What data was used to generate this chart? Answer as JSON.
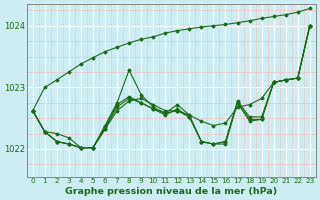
{
  "xlabel": "Graphe pression niveau de la mer (hPa)",
  "ylim": [
    1021.55,
    1024.35
  ],
  "xlim": [
    -0.5,
    23.5
  ],
  "yticks": [
    1022,
    1023,
    1024
  ],
  "xticks": [
    0,
    1,
    2,
    3,
    4,
    5,
    6,
    7,
    8,
    9,
    10,
    11,
    12,
    13,
    14,
    15,
    16,
    17,
    18,
    19,
    20,
    21,
    22,
    23
  ],
  "bg_color": "#cceef2",
  "grid_major_color": "#ffffff",
  "grid_minor_h_color": "#f0c0c0",
  "grid_minor_v_color": "#f0c0c0",
  "line_color": "#1a6b1a",
  "lines": [
    {
      "y": [
        1022.62,
        1022.28,
        1022.12,
        1022.08,
        1022.02,
        1022.02,
        1022.32,
        1022.62,
        1022.78,
        1022.82,
        1022.72,
        1022.62,
        1022.62,
        1022.55,
        1022.45,
        1022.38,
        1022.42,
        1022.68,
        1022.72,
        1022.82,
        1023.08,
        1023.12,
        1023.15,
        1024.0
      ]
    },
    {
      "y": [
        1022.62,
        1022.28,
        1022.12,
        1022.08,
        1022.02,
        1022.02,
        1022.32,
        1022.68,
        1022.82,
        1022.75,
        1022.65,
        1022.58,
        1022.62,
        1022.52,
        1022.12,
        1022.08,
        1022.08,
        1022.75,
        1022.45,
        1022.48,
        1023.08,
        1023.12,
        1023.15,
        1024.0
      ]
    },
    {
      "y": [
        1022.62,
        1022.28,
        1022.12,
        1022.08,
        1022.02,
        1022.02,
        1022.35,
        1022.72,
        1022.85,
        1022.75,
        1022.65,
        1022.55,
        1022.65,
        1022.52,
        1022.12,
        1022.08,
        1022.12,
        1022.75,
        1022.48,
        1022.48,
        1023.08,
        1023.12,
        1023.15,
        1024.0
      ]
    },
    {
      "y": [
        1022.62,
        1022.28,
        1022.25,
        1022.18,
        1022.02,
        1022.02,
        1022.38,
        1022.75,
        1023.28,
        1022.88,
        1022.68,
        1022.58,
        1022.72,
        1022.55,
        1022.12,
        1022.08,
        1022.12,
        1022.78,
        1022.52,
        1022.52,
        1023.08,
        1023.12,
        1023.15,
        1024.0
      ]
    }
  ],
  "line_straight": [
    1022.62,
    1023.0,
    1023.12,
    1023.25,
    1023.38,
    1023.48,
    1023.58,
    1023.65,
    1023.72,
    1023.78,
    1023.82,
    1023.88,
    1023.92,
    1023.95,
    1023.98,
    1024.0,
    1024.02,
    1024.05,
    1024.08,
    1024.12,
    1024.15,
    1024.18,
    1024.22,
    1024.28
  ]
}
